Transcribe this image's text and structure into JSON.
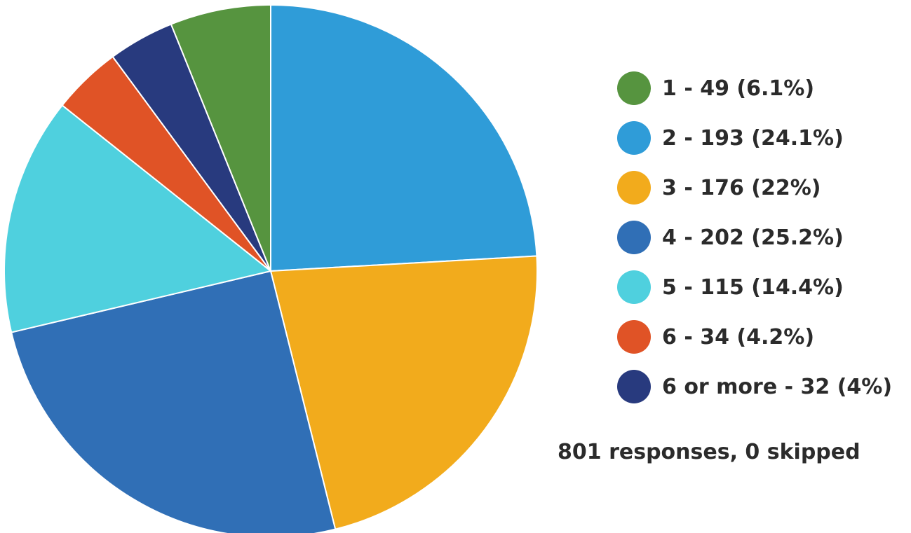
{
  "chart_data": {
    "type": "pie",
    "title": "",
    "slices": [
      {
        "label": "1 - 49 (6.1%)",
        "category": "1",
        "count": 49,
        "percent": 6.1,
        "color": "#56943f"
      },
      {
        "label": "2 - 193 (24.1%)",
        "category": "2",
        "count": 193,
        "percent": 24.1,
        "color": "#2f9cd8"
      },
      {
        "label": "3 - 176 (22%)",
        "category": "3",
        "count": 176,
        "percent": 22,
        "color": "#f2ab1c"
      },
      {
        "label": "4 - 202 (25.2%)",
        "category": "4",
        "count": 202,
        "percent": 25.2,
        "color": "#306fb6"
      },
      {
        "label": "5 - 115 (14.4%)",
        "category": "5",
        "count": 115,
        "percent": 14.4,
        "color": "#4fd0de"
      },
      {
        "label": "6 - 34 (4.2%)",
        "category": "6",
        "count": 34,
        "percent": 4.2,
        "color": "#e05326"
      },
      {
        "label": "6 or more - 32 (4%)",
        "category": "6 or more",
        "count": 32,
        "percent": 4,
        "color": "#283a7e"
      }
    ],
    "pie_draw_order": [
      1,
      2,
      3,
      4,
      5,
      6,
      0
    ],
    "legend_position": "right",
    "summary": "801 responses, 0 skipped"
  }
}
